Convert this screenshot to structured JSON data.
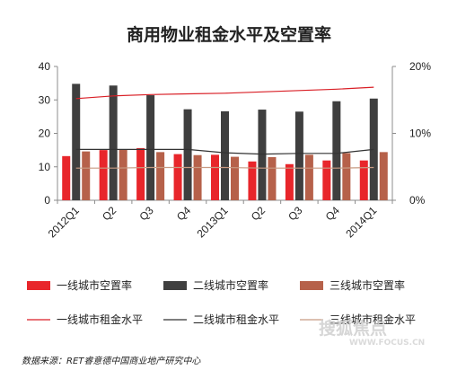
{
  "chart_data": {
    "type": "bar",
    "title": "商用物业租金水平及空置率",
    "categories": [
      "2012Q1",
      "Q2",
      "Q3",
      "Q4",
      "2013Q1",
      "Q2",
      "Q3",
      "Q4",
      "2014Q1"
    ],
    "y_left": {
      "min": 0,
      "max": 40,
      "ticks": [
        "0",
        "10",
        "20",
        "30",
        "40"
      ]
    },
    "y_right": {
      "min": 0,
      "max": 20,
      "ticks": [
        "0%",
        "10%",
        "20%"
      ]
    },
    "bar_series": [
      {
        "name": "一线城市空置率",
        "color": "#e8262b",
        "values": [
          13.2,
          15.0,
          15.6,
          13.8,
          13.6,
          11.6,
          10.8,
          11.9,
          11.9
        ]
      },
      {
        "name": "二线城市空置率",
        "color": "#3f3f3f",
        "values": [
          34.8,
          34.3,
          31.4,
          27.2,
          26.6,
          27.1,
          26.5,
          29.6,
          30.4
        ]
      },
      {
        "name": "三线城市空置率",
        "color": "#b6614a",
        "values": [
          14.6,
          15.1,
          14.4,
          13.5,
          13.0,
          12.9,
          13.6,
          14.1,
          14.4
        ]
      }
    ],
    "line_series": [
      {
        "name": "一线城市租金水平",
        "color": "#d91f26",
        "values": [
          15.2,
          15.6,
          15.8,
          15.9,
          16.0,
          16.2,
          16.4,
          16.6,
          16.9
        ]
      },
      {
        "name": "二线城市租金水平",
        "color": "#333333",
        "values": [
          7.6,
          7.6,
          7.6,
          7.6,
          7.1,
          6.9,
          7.0,
          7.0,
          7.6
        ]
      },
      {
        "name": "三线城市租金水平",
        "color": "#c89a82",
        "values": [
          4.8,
          4.8,
          4.9,
          4.9,
          4.9,
          4.8,
          4.8,
          4.8,
          4.9
        ]
      }
    ],
    "legend_position": "bottom",
    "grid": false
  },
  "source_note": "数据来源：RET睿意德中国商业地产研究中心",
  "watermark": {
    "name": "搜狐焦点",
    "url": "WWW.FOCUS.CN"
  }
}
